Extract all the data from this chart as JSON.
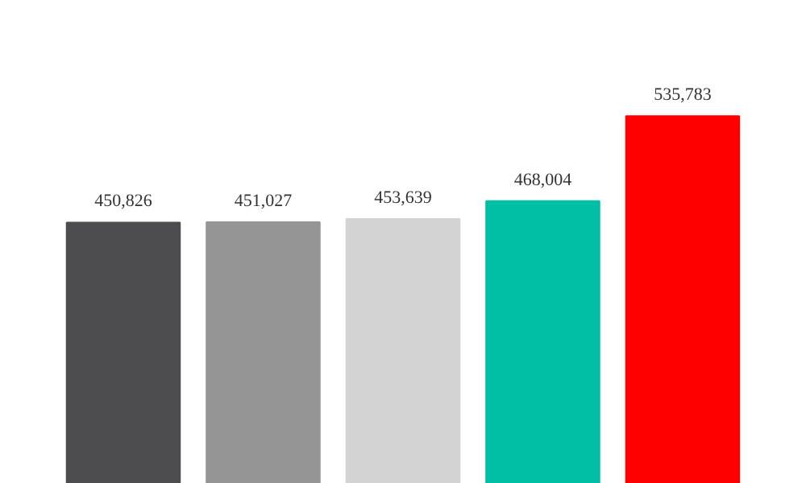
{
  "chart_data": {
    "type": "bar",
    "categories": [
      null,
      null,
      null,
      null,
      null
    ],
    "values": [
      450826,
      451027,
      453639,
      468004,
      535783
    ],
    "colors": [
      "#4d4d4f",
      "#959595",
      "#d3d3d3",
      "#00bfa5",
      "#ff0000"
    ],
    "value_labels": [
      "450,826",
      "451,027",
      "453,639",
      "468,004",
      "535,783"
    ],
    "ylim": [
      242000,
      628000
    ],
    "tick_labels": false,
    "grid": false
  }
}
